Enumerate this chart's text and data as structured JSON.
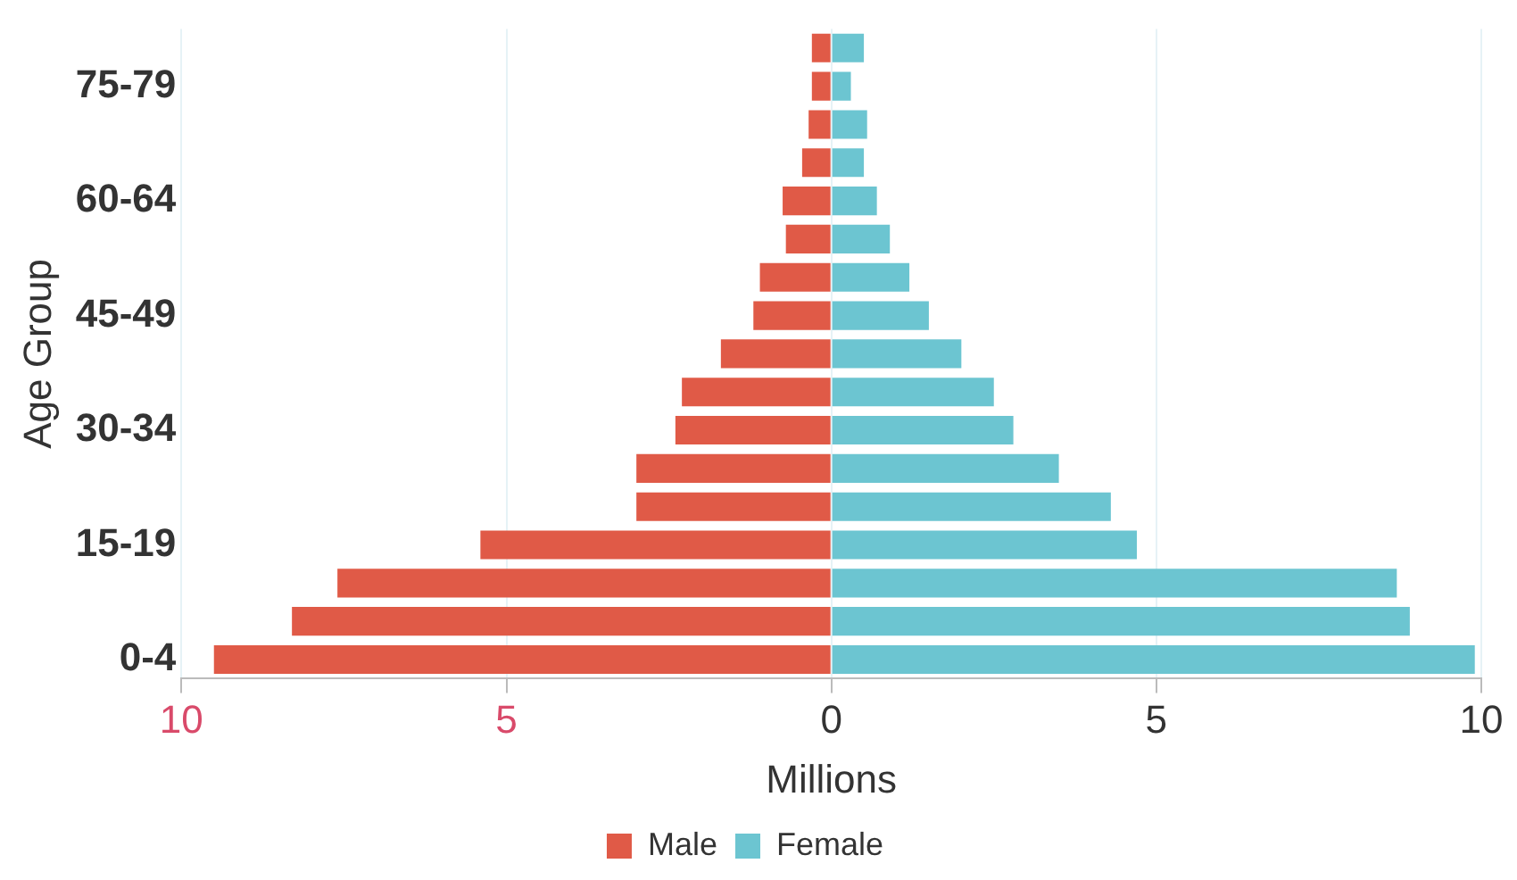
{
  "chart_data": {
    "type": "bar",
    "orientation": "horizontal",
    "stacked": true,
    "xlabel": "Millions",
    "ylabel": "Age Group",
    "categories": [
      null,
      "75-79",
      null,
      null,
      "60-64",
      null,
      null,
      "45-49",
      null,
      null,
      "30-34",
      null,
      null,
      "15-19",
      null,
      null,
      "0-4"
    ],
    "series": [
      {
        "name": "Male",
        "color": "#e05a47",
        "values": [
          -0.3,
          -0.3,
          -0.35,
          -0.45,
          -0.75,
          -0.7,
          -1.1,
          -1.2,
          -1.7,
          -2.3,
          -2.4,
          -3.0,
          -3.0,
          -5.4,
          -7.6,
          -8.3,
          -9.5
        ]
      },
      {
        "name": "Female",
        "color": "#6cc5d1",
        "values": [
          0.5,
          0.3,
          0.55,
          0.5,
          0.7,
          0.9,
          1.2,
          1.5,
          2.0,
          2.5,
          2.8,
          3.5,
          4.3,
          4.7,
          8.7,
          8.9,
          9.9
        ]
      }
    ],
    "xlim": [
      -10,
      10
    ],
    "xticks": [
      {
        "value": -10,
        "label": "10"
      },
      {
        "value": -5,
        "label": "5"
      },
      0,
      5,
      10
    ],
    "grid": "x",
    "legend": "bottom"
  }
}
